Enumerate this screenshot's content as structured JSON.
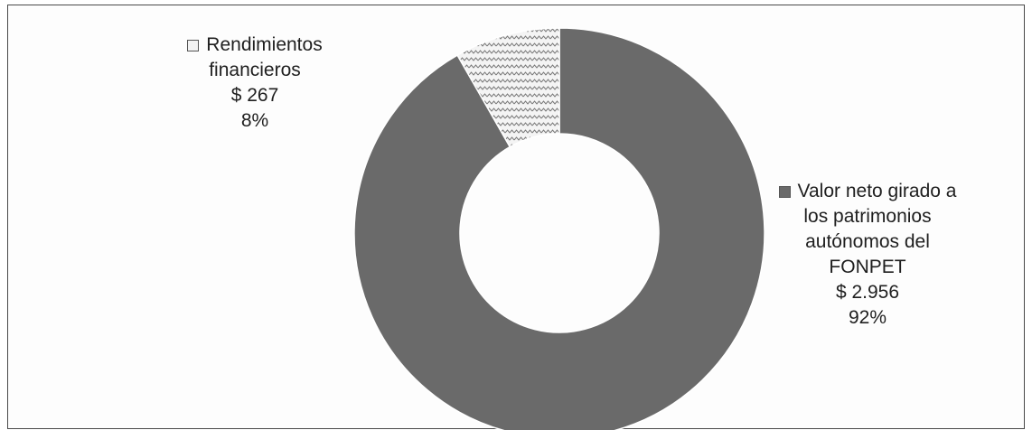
{
  "chart_data": {
    "type": "pie",
    "variant": "donut",
    "title": "",
    "series": [
      {
        "name": "",
        "values": [
          {
            "label_lines": [
              "Valor neto girado a",
              "los patrimonios",
              "autónomos del",
              "FONPET"
            ],
            "value": 2956,
            "value_label": "$ 2.956",
            "percent_label": "92%",
            "color": "#6a6a6a",
            "fill": "solid"
          },
          {
            "label_lines": [
              "Rendimientos",
              "financieros"
            ],
            "value": 267,
            "value_label": "$ 267",
            "percent_label": "8%",
            "color": "#f2f2f2",
            "fill": "zigzag-pattern"
          }
        ]
      }
    ],
    "legend": "none",
    "start_angle": "12 o'clock, clockwise"
  }
}
